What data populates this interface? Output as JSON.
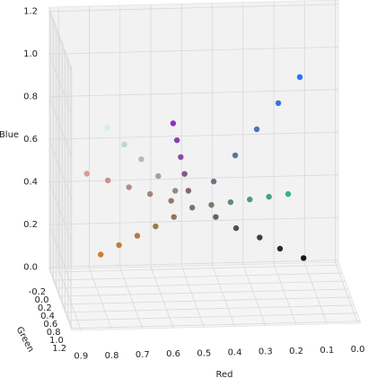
{
  "chart_data": {
    "type": "scatter3d",
    "xlabel": "Red",
    "ylabel": "Green",
    "zlabel": "Blue",
    "x": [
      0.5,
      0.56,
      0.62,
      0.68,
      0.74,
      0.8,
      0.51,
      0.52,
      0.53,
      0.54,
      0.55,
      0.43,
      0.36,
      0.29,
      0.22,
      0.15,
      0.44,
      0.38,
      0.32,
      0.26,
      0.2,
      0.42,
      0.35,
      0.27,
      0.2,
      0.12,
      0.56,
      0.62,
      0.68,
      0.74,
      0.8,
      0.57,
      0.64,
      0.71,
      0.78,
      0.85
    ],
    "y": [
      0.45,
      0.55,
      0.65,
      0.75,
      0.85,
      0.95,
      0.4,
      0.35,
      0.3,
      0.25,
      0.2,
      0.45,
      0.45,
      0.45,
      0.45,
      0.45,
      0.5,
      0.55,
      0.6,
      0.65,
      0.7,
      0.38,
      0.3,
      0.23,
      0.15,
      0.08,
      0.46,
      0.47,
      0.48,
      0.49,
      0.5,
      0.48,
      0.51,
      0.54,
      0.57,
      0.6
    ],
    "z": [
      0.4,
      0.5,
      0.59,
      0.69,
      0.78,
      0.88,
      0.47,
      0.54,
      0.61,
      0.68,
      0.75,
      0.52,
      0.64,
      0.76,
      0.88,
      1.0,
      0.42,
      0.44,
      0.46,
      0.48,
      0.5,
      0.34,
      0.27,
      0.21,
      0.14,
      0.08,
      0.36,
      0.32,
      0.28,
      0.24,
      0.2,
      0.44,
      0.48,
      0.52,
      0.56,
      0.6
    ],
    "xlim": [
      -0.01,
      0.93
    ],
    "ylim": [
      -0.27,
      1.25
    ],
    "zlim": [
      -0.01,
      1.22
    ],
    "xticks": [
      {
        "value": 0,
        "label": "0.0"
      },
      0.1,
      0.2,
      0.3,
      0.4,
      0.5,
      0.6,
      0.7,
      0.8,
      0.9
    ],
    "yticks": [
      -0.2,
      {
        "value": 0,
        "label": "0.0"
      },
      0.2,
      0.4,
      0.6,
      0.8,
      {
        "value": 1,
        "label": "1.0"
      },
      1.2
    ],
    "zticks": [
      {
        "value": 0,
        "label": "0.0"
      },
      0.2,
      0.4,
      0.6,
      0.8,
      {
        "value": 1,
        "label": "1.0"
      },
      1.2
    ],
    "grid": true
  }
}
